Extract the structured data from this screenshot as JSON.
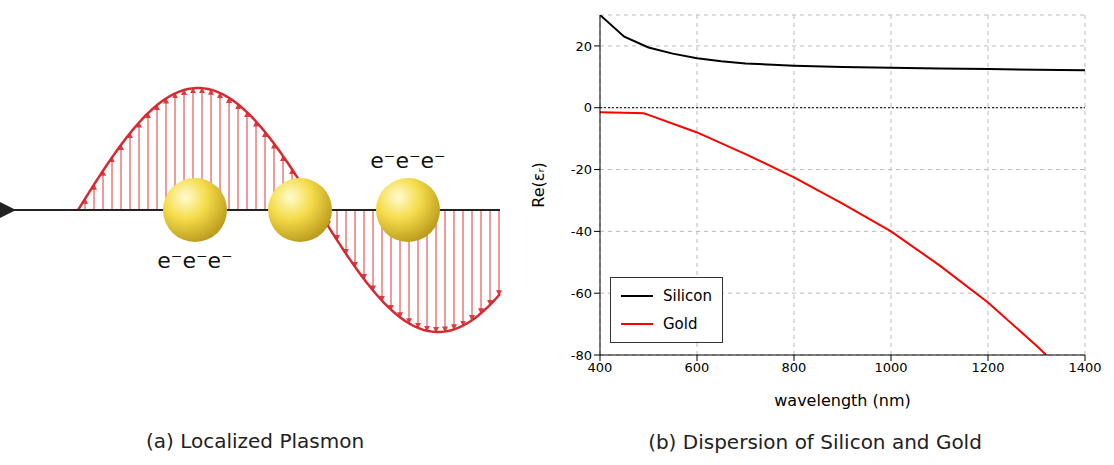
{
  "diagram": {
    "caption": "(a) Localized Plasmon",
    "charge_labels": [
      "e⁻e⁻e⁻",
      "e⁻e⁻e⁻"
    ]
  },
  "chart_data": {
    "type": "line",
    "caption": "(b) Dispersion of Silicon and Gold",
    "x_label": "wavelength (nm)",
    "y_label": "Re(εᵣ)",
    "xlim": [
      400,
      1400
    ],
    "xticks": [
      400,
      600,
      800,
      1000,
      1200,
      1400
    ],
    "ylim": [
      -80,
      30
    ],
    "yticks": [
      -80,
      -60,
      -40,
      -20,
      0,
      20
    ],
    "grid": true,
    "legend": "lower left",
    "hlines": [
      0
    ],
    "series": [
      {
        "name": "Silicon",
        "color": "#000000",
        "x": [
          400,
          450,
          500,
          550,
          600,
          650,
          700,
          800,
          900,
          1000,
          1100,
          1200,
          1300,
          1400
        ],
        "values": [
          30,
          23,
          19.5,
          17.5,
          16,
          15,
          14.3,
          13.6,
          13.2,
          12.9,
          12.7,
          12.5,
          12.3,
          12.1
        ]
      },
      {
        "name": "Gold",
        "color": "#ff0000",
        "x": [
          400,
          450,
          490,
          500,
          600,
          700,
          800,
          900,
          1000,
          1100,
          1200,
          1300,
          1320
        ],
        "values": [
          -1.5,
          -1.6,
          -1.8,
          -2.3,
          -8,
          -15,
          -22.5,
          -31,
          -40,
          -51,
          -63,
          -77,
          -80
        ]
      }
    ]
  }
}
